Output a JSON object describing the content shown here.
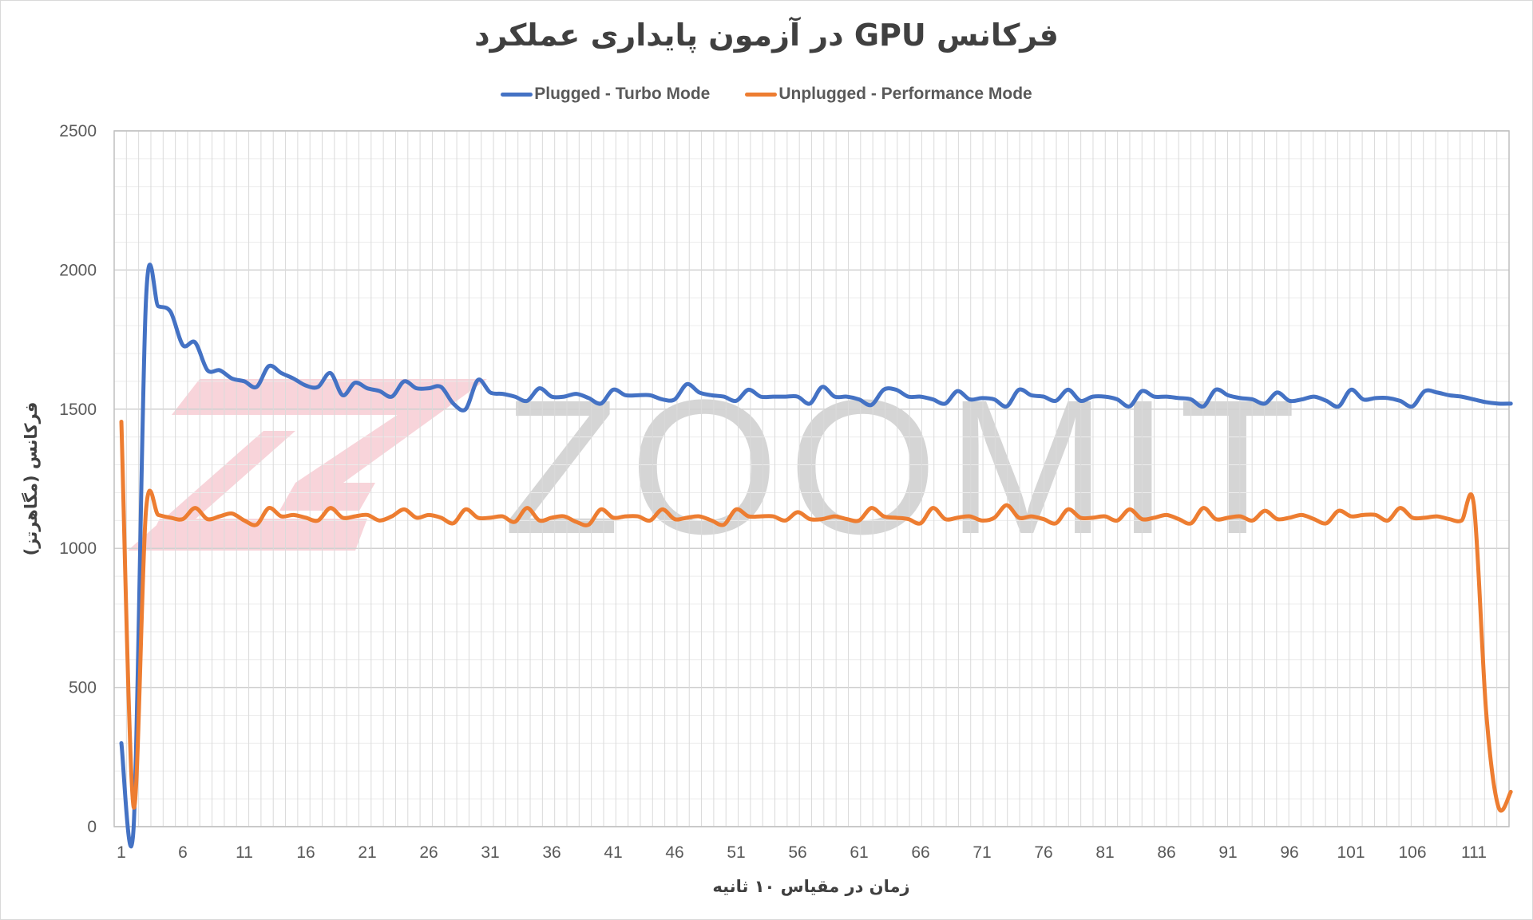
{
  "chart_data": {
    "type": "line",
    "title": "فرکانس GPU در آزمون پایداری عملکرد",
    "xlabel": "زمان در مقیاس ۱۰ ثانیه",
    "ylabel": "فرکانس (مگاهرتز)",
    "ylim": [
      0,
      2500
    ],
    "yticks": [
      0,
      500,
      1000,
      1500,
      2000,
      2500
    ],
    "y_minor_step": 100,
    "x_count": 114,
    "xtick_labels": [
      "1",
      "6",
      "11",
      "16",
      "21",
      "26",
      "31",
      "36",
      "41",
      "46",
      "51",
      "56",
      "61",
      "66",
      "71",
      "76",
      "81",
      "86",
      "91",
      "96",
      "101",
      "106",
      "111"
    ],
    "grid": true,
    "legend_position": "top",
    "watermark": "ZOOMIT",
    "series": [
      {
        "name": "Plugged - Turbo Mode",
        "color": "#4472C4",
        "values": [
          300,
          0,
          1890,
          1870,
          1850,
          1730,
          1740,
          1640,
          1640,
          1610,
          1600,
          1580,
          1655,
          1630,
          1610,
          1585,
          1580,
          1630,
          1550,
          1595,
          1575,
          1565,
          1545,
          1600,
          1575,
          1575,
          1580,
          1520,
          1500,
          1605,
          1560,
          1555,
          1545,
          1530,
          1575,
          1545,
          1545,
          1555,
          1540,
          1520,
          1570,
          1550,
          1550,
          1550,
          1535,
          1535,
          1590,
          1560,
          1550,
          1545,
          1530,
          1570,
          1545,
          1545,
          1545,
          1545,
          1520,
          1580,
          1545,
          1545,
          1535,
          1515,
          1570,
          1570,
          1545,
          1545,
          1535,
          1520,
          1565,
          1535,
          1540,
          1535,
          1510,
          1570,
          1550,
          1545,
          1530,
          1570,
          1530,
          1545,
          1545,
          1535,
          1510,
          1565,
          1545,
          1545,
          1540,
          1535,
          1510,
          1570,
          1550,
          1540,
          1535,
          1520,
          1560,
          1530,
          1535,
          1545,
          1530,
          1510,
          1570,
          1535,
          1540,
          1540,
          1530,
          1510,
          1565,
          1560,
          1550,
          1545,
          1535,
          1525,
          1520,
          1520
        ]
      },
      {
        "name": "Unplugged - Performance Mode",
        "color": "#ED7D31",
        "values": [
          1455,
          70,
          1135,
          1120,
          1110,
          1105,
          1145,
          1105,
          1115,
          1125,
          1100,
          1085,
          1145,
          1115,
          1120,
          1110,
          1100,
          1145,
          1110,
          1115,
          1120,
          1100,
          1115,
          1140,
          1110,
          1120,
          1110,
          1090,
          1140,
          1110,
          1110,
          1115,
          1095,
          1145,
          1100,
          1110,
          1115,
          1095,
          1085,
          1140,
          1110,
          1115,
          1115,
          1100,
          1140,
          1105,
          1110,
          1115,
          1100,
          1085,
          1140,
          1115,
          1115,
          1115,
          1100,
          1130,
          1105,
          1105,
          1115,
          1105,
          1100,
          1145,
          1115,
          1110,
          1105,
          1090,
          1145,
          1105,
          1110,
          1115,
          1100,
          1110,
          1155,
          1110,
          1115,
          1105,
          1090,
          1140,
          1110,
          1110,
          1115,
          1100,
          1140,
          1105,
          1110,
          1120,
          1105,
          1090,
          1145,
          1105,
          1110,
          1115,
          1100,
          1135,
          1105,
          1110,
          1120,
          1105,
          1090,
          1135,
          1115,
          1120,
          1120,
          1100,
          1145,
          1110,
          1110,
          1115,
          1105,
          1100,
          1155,
          410,
          70,
          125
        ]
      }
    ]
  }
}
